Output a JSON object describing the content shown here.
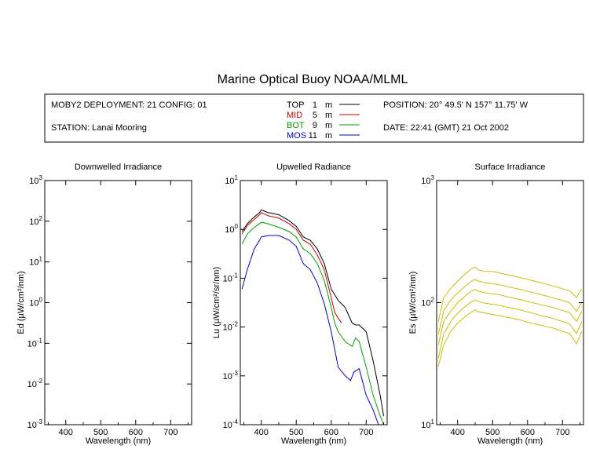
{
  "title": "Marine Optical Buoy NOAA/MLML",
  "info": {
    "deployment": "MOBY2 DEPLOYMENT: 21 CONFIG: 01",
    "station": "STATION: Lanai Mooring",
    "position": "POSITION: 20° 49.5' N   157° 11.75' W",
    "date": "DATE: 22:41 (GMT) 21 Oct 2002"
  },
  "legend": [
    {
      "name": "TOP",
      "depth": "1",
      "unit": "m",
      "color": "#000000"
    },
    {
      "name": "MID",
      "depth": "5",
      "unit": "m",
      "color": "#cc0000"
    },
    {
      "name": "BOT",
      "depth": "9",
      "unit": "m",
      "color": "#00a000"
    },
    {
      "name": "MOS",
      "depth": "11",
      "unit": "m",
      "color": "#0000cc"
    }
  ],
  "chart_data": [
    {
      "type": "line",
      "title": "Downwelled Irradiance",
      "xlabel": "Wavelength (nm)",
      "ylabel": "Ed  (µW/cm²/nm)",
      "xlim": [
        340,
        760
      ],
      "ylim": [
        0.001,
        1000
      ],
      "yscale": "log",
      "x_ticks": [
        "400",
        "500",
        "600",
        "700"
      ],
      "y_ticks": [
        {
          "base": "10",
          "exp": "-3"
        },
        {
          "base": "10",
          "exp": "-2"
        },
        {
          "base": "10",
          "exp": "-1"
        },
        {
          "base": "10",
          "exp": "0"
        },
        {
          "base": "10",
          "exp": "1"
        },
        {
          "base": "10",
          "exp": "2"
        },
        {
          "base": "10",
          "exp": "3"
        }
      ],
      "series": []
    },
    {
      "type": "line",
      "title": "Upwelled Radiance",
      "xlabel": "Wavelength (nm)",
      "ylabel": "Lu  (µW/cm²/sr/nm)",
      "xlim": [
        340,
        760
      ],
      "ylim": [
        0.0001,
        10
      ],
      "yscale": "log",
      "x_ticks": [
        "400",
        "500",
        "600",
        "700"
      ],
      "y_ticks": [
        {
          "base": "10",
          "exp": "-4"
        },
        {
          "base": "10",
          "exp": "-3"
        },
        {
          "base": "10",
          "exp": "-2"
        },
        {
          "base": "10",
          "exp": "-1"
        },
        {
          "base": "10",
          "exp": "0"
        },
        {
          "base": "10",
          "exp": "1"
        }
      ],
      "series": [
        {
          "name": "TOP",
          "color": "#000000",
          "x": [
            345,
            360,
            380,
            395,
            400,
            420,
            450,
            480,
            500,
            520,
            540,
            560,
            580,
            600,
            620,
            640,
            660,
            670,
            680,
            700,
            720,
            740,
            750
          ],
          "y": [
            0.9,
            1.3,
            1.8,
            2.2,
            2.5,
            2.2,
            2.0,
            1.5,
            1.15,
            0.7,
            0.6,
            0.4,
            0.2,
            0.06,
            0.035,
            0.025,
            0.012,
            0.011,
            0.011,
            0.008,
            0.002,
            0.0004,
            0.00015
          ]
        },
        {
          "name": "MID",
          "color": "#cc0000",
          "x": [
            345,
            360,
            380,
            395,
            400,
            420,
            450,
            480,
            500,
            520,
            540,
            560,
            580,
            600,
            610,
            620,
            630
          ],
          "y": [
            0.8,
            1.2,
            1.6,
            2.0,
            2.2,
            1.9,
            1.7,
            1.3,
            1.0,
            0.6,
            0.5,
            0.3,
            0.15,
            0.04,
            0.02,
            0.015,
            0.012
          ]
        },
        {
          "name": "BOT",
          "color": "#00a000",
          "x": [
            345,
            360,
            380,
            395,
            400,
            420,
            450,
            480,
            500,
            520,
            540,
            560,
            580,
            600,
            610,
            620,
            640,
            660,
            670,
            680,
            700,
            720,
            740,
            750
          ],
          "y": [
            0.5,
            0.8,
            1.1,
            1.3,
            1.4,
            1.3,
            1.1,
            0.9,
            0.7,
            0.4,
            0.32,
            0.2,
            0.09,
            0.025,
            0.012,
            0.008,
            0.005,
            0.004,
            0.006,
            0.005,
            0.0015,
            0.0004,
            0.00015,
            0.0001
          ]
        },
        {
          "name": "MOS",
          "color": "#0000cc",
          "x": [
            345,
            360,
            380,
            395,
            400,
            420,
            450,
            480,
            500,
            520,
            540,
            560,
            580,
            600,
            620,
            640,
            655,
            665,
            680,
            700,
            720,
            735,
            745
          ],
          "y": [
            0.06,
            0.15,
            0.4,
            0.6,
            0.7,
            0.75,
            0.75,
            0.6,
            0.45,
            0.2,
            0.15,
            0.08,
            0.03,
            0.008,
            0.0015,
            0.001,
            0.0008,
            0.0012,
            0.0014,
            0.0004,
            0.0002,
            0.0001,
            8e-05
          ]
        }
      ]
    },
    {
      "type": "line",
      "title": "Surface Irradiance",
      "xlabel": "Wavelength (nm)",
      "ylabel": "Es  (µW/cm²/nm)",
      "xlim": [
        340,
        760
      ],
      "ylim": [
        10,
        1000
      ],
      "yscale": "log",
      "x_ticks": [
        "400",
        "500",
        "600",
        "700"
      ],
      "y_ticks": [
        {
          "base": "10",
          "exp": "1"
        },
        {
          "base": "10",
          "exp": "2"
        },
        {
          "base": "10",
          "exp": "3"
        }
      ],
      "series": [
        {
          "name": "",
          "color": "#c8c000",
          "x": [
            345,
            360,
            380,
            400,
            420,
            440,
            450,
            460,
            480,
            500,
            520,
            540,
            560,
            580,
            600,
            620,
            640,
            660,
            680,
            700,
            720,
            740,
            755
          ],
          "y": [
            70,
            110,
            130,
            150,
            170,
            190,
            195,
            185,
            180,
            180,
            175,
            170,
            165,
            160,
            155,
            150,
            145,
            140,
            135,
            130,
            125,
            110,
            130
          ]
        },
        {
          "name": "",
          "color": "#c8c000",
          "x": [
            345,
            360,
            380,
            400,
            420,
            440,
            450,
            460,
            480,
            500,
            520,
            540,
            560,
            580,
            600,
            620,
            640,
            660,
            680,
            700,
            720,
            740,
            755
          ],
          "y": [
            55,
            85,
            105,
            120,
            135,
            150,
            155,
            150,
            145,
            143,
            140,
            136,
            132,
            128,
            124,
            120,
            116,
            112,
            108,
            104,
            100,
            85,
            100
          ]
        },
        {
          "name": "",
          "color": "#c8c000",
          "x": [
            345,
            360,
            380,
            400,
            420,
            440,
            450,
            460,
            480,
            500,
            520,
            540,
            560,
            580,
            600,
            620,
            640,
            660,
            680,
            700,
            720,
            740,
            755
          ],
          "y": [
            45,
            70,
            85,
            100,
            112,
            125,
            128,
            124,
            120,
            118,
            116,
            112,
            109,
            106,
            102,
            99,
            96,
            93,
            90,
            86,
            83,
            70,
            85
          ]
        },
        {
          "name": "",
          "color": "#c8c000",
          "x": [
            345,
            360,
            380,
            400,
            420,
            440,
            450,
            460,
            480,
            500,
            520,
            540,
            560,
            580,
            600,
            620,
            640,
            660,
            680,
            700,
            720,
            740,
            755
          ],
          "y": [
            35,
            55,
            70,
            82,
            92,
            102,
            105,
            102,
            99,
            97,
            95,
            92,
            90,
            87,
            84,
            81,
            78,
            76,
            73,
            70,
            67,
            56,
            70
          ]
        },
        {
          "name": "",
          "color": "#c8c000",
          "x": [
            345,
            360,
            380,
            400,
            420,
            440,
            450,
            460,
            480,
            500,
            520,
            540,
            560,
            580,
            600,
            620,
            640,
            660,
            680,
            700,
            720,
            740,
            755
          ],
          "y": [
            30,
            45,
            58,
            68,
            76,
            84,
            87,
            84,
            82,
            80,
            78,
            76,
            74,
            72,
            69,
            67,
            65,
            63,
            61,
            58,
            56,
            46,
            58
          ]
        }
      ]
    }
  ]
}
